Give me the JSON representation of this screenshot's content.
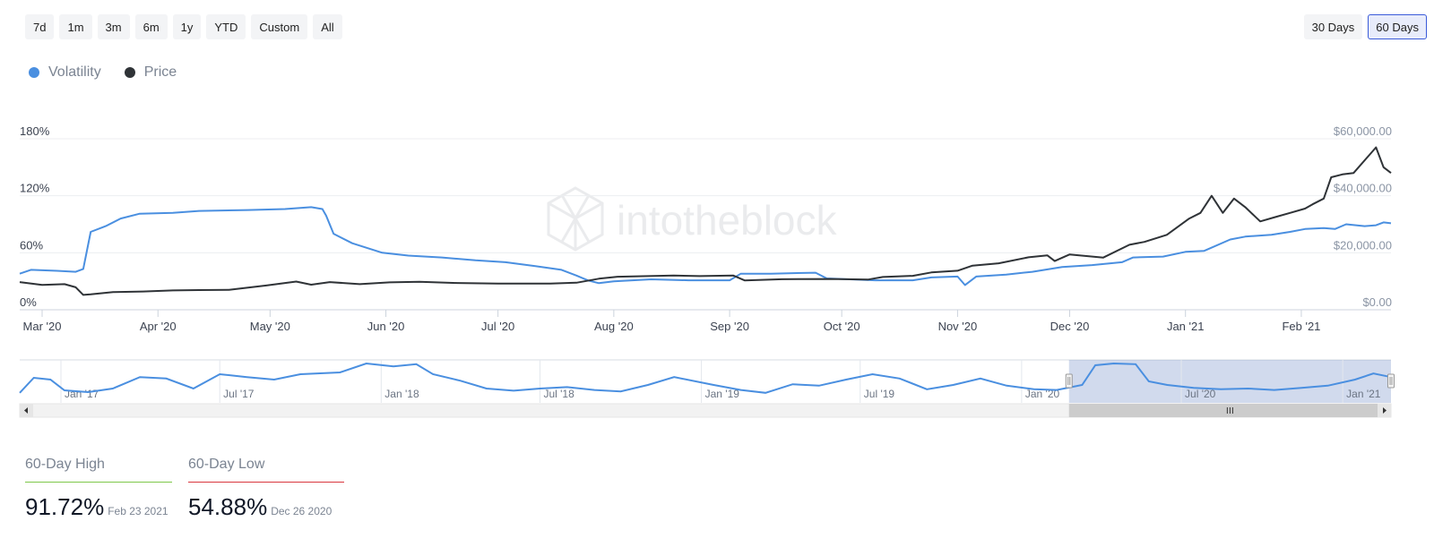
{
  "range_buttons": [
    {
      "label": "7d"
    },
    {
      "label": "1m"
    },
    {
      "label": "3m"
    },
    {
      "label": "6m"
    },
    {
      "label": "1y"
    },
    {
      "label": "YTD"
    },
    {
      "label": "Custom"
    },
    {
      "label": "All"
    }
  ],
  "window_buttons": [
    {
      "label": "30 Days",
      "active": false
    },
    {
      "label": "60 Days",
      "active": true
    }
  ],
  "legend": [
    {
      "label": "Volatility",
      "color": "#4a8fe0"
    },
    {
      "label": "Price",
      "color": "#2f3337"
    }
  ],
  "watermark": "intotheblock",
  "stats": {
    "high": {
      "label": "60-Day High",
      "value": "91.72%",
      "date": "Feb 23 2021",
      "color": "#7ec84a"
    },
    "low": {
      "label": "60-Day Low",
      "value": "54.88%",
      "date": "Dec 26 2020",
      "color": "#d9363e"
    }
  },
  "chart_data": {
    "type": "line",
    "x_range": [
      "2020-02-24",
      "2021-02-25"
    ],
    "x_ticks": [
      {
        "label": "Mar '20",
        "date": "2020-03-01"
      },
      {
        "label": "Apr '20",
        "date": "2020-04-01"
      },
      {
        "label": "May '20",
        "date": "2020-05-01"
      },
      {
        "label": "Jun '20",
        "date": "2020-06-01"
      },
      {
        "label": "Jul '20",
        "date": "2020-07-01"
      },
      {
        "label": "Aug '20",
        "date": "2020-08-01"
      },
      {
        "label": "Sep '20",
        "date": "2020-09-01"
      },
      {
        "label": "Oct '20",
        "date": "2020-10-01"
      },
      {
        "label": "Nov '20",
        "date": "2020-11-01"
      },
      {
        "label": "Dec '20",
        "date": "2020-12-01"
      },
      {
        "label": "Jan '21",
        "date": "2021-01-01"
      },
      {
        "label": "Feb '21",
        "date": "2021-02-01"
      }
    ],
    "y_left": {
      "range": [
        0,
        180
      ],
      "ticks": [
        {
          "value": 0,
          "label": "0%"
        },
        {
          "value": 60,
          "label": "60%"
        },
        {
          "value": 120,
          "label": "120%"
        },
        {
          "value": 180,
          "label": "180%"
        }
      ]
    },
    "y_right": {
      "range": [
        0,
        60000
      ],
      "ticks": [
        {
          "value": 0,
          "label": "$0.00"
        },
        {
          "value": 20000,
          "label": "$20,000.00"
        },
        {
          "value": 40000,
          "label": "$40,000.00"
        },
        {
          "value": 60000,
          "label": "$60,000.00"
        }
      ]
    },
    "grid": true,
    "legend_position": "top-left",
    "series": [
      {
        "name": "Volatility",
        "axis": "left",
        "color": "#4a8fe0",
        "points": [
          [
            "2020-02-24",
            38
          ],
          [
            "2020-02-27",
            42
          ],
          [
            "2020-03-05",
            41
          ],
          [
            "2020-03-10",
            40
          ],
          [
            "2020-03-12",
            43
          ],
          [
            "2020-03-14",
            82
          ],
          [
            "2020-03-18",
            88
          ],
          [
            "2020-03-22",
            96
          ],
          [
            "2020-03-27",
            101
          ],
          [
            "2020-04-05",
            102
          ],
          [
            "2020-04-12",
            104
          ],
          [
            "2020-04-25",
            105
          ],
          [
            "2020-05-05",
            106
          ],
          [
            "2020-05-12",
            108
          ],
          [
            "2020-05-15",
            106
          ],
          [
            "2020-05-16",
            99
          ],
          [
            "2020-05-18",
            80
          ],
          [
            "2020-05-23",
            70
          ],
          [
            "2020-05-31",
            60
          ],
          [
            "2020-06-07",
            57
          ],
          [
            "2020-06-16",
            55
          ],
          [
            "2020-06-25",
            52
          ],
          [
            "2020-07-03",
            50
          ],
          [
            "2020-07-11",
            46
          ],
          [
            "2020-07-18",
            42
          ],
          [
            "2020-07-22",
            36
          ],
          [
            "2020-07-25",
            31
          ],
          [
            "2020-07-28",
            28
          ],
          [
            "2020-08-01",
            30
          ],
          [
            "2020-08-11",
            32
          ],
          [
            "2020-08-21",
            31
          ],
          [
            "2020-09-01",
            31
          ],
          [
            "2020-09-04",
            38
          ],
          [
            "2020-09-12",
            38
          ],
          [
            "2020-09-24",
            39
          ],
          [
            "2020-09-27",
            33
          ],
          [
            "2020-10-10",
            31
          ],
          [
            "2020-10-20",
            31
          ],
          [
            "2020-10-25",
            34
          ],
          [
            "2020-11-01",
            35
          ],
          [
            "2020-11-03",
            26
          ],
          [
            "2020-11-06",
            35
          ],
          [
            "2020-11-14",
            37
          ],
          [
            "2020-11-21",
            40
          ],
          [
            "2020-11-29",
            45
          ],
          [
            "2020-12-07",
            47
          ],
          [
            "2020-12-15",
            50
          ],
          [
            "2020-12-18",
            55
          ],
          [
            "2020-12-26",
            56
          ],
          [
            "2021-01-01",
            61
          ],
          [
            "2021-01-06",
            62
          ],
          [
            "2021-01-13",
            74
          ],
          [
            "2021-01-17",
            77
          ],
          [
            "2021-01-24",
            79
          ],
          [
            "2021-01-29",
            82
          ],
          [
            "2021-02-02",
            85
          ],
          [
            "2021-02-07",
            86
          ],
          [
            "2021-02-10",
            85
          ],
          [
            "2021-02-13",
            90
          ],
          [
            "2021-02-18",
            88
          ],
          [
            "2021-02-21",
            89
          ],
          [
            "2021-02-23",
            92
          ],
          [
            "2021-02-25",
            91
          ]
        ]
      },
      {
        "name": "Price",
        "axis": "right",
        "color": "#2f3337",
        "points": [
          [
            "2020-02-24",
            9700
          ],
          [
            "2020-03-01",
            8700
          ],
          [
            "2020-03-07",
            9000
          ],
          [
            "2020-03-10",
            7900
          ],
          [
            "2020-03-12",
            5200
          ],
          [
            "2020-03-14",
            5400
          ],
          [
            "2020-03-20",
            6200
          ],
          [
            "2020-03-28",
            6400
          ],
          [
            "2020-04-05",
            6800
          ],
          [
            "2020-04-12",
            6900
          ],
          [
            "2020-04-20",
            7000
          ],
          [
            "2020-04-30",
            8500
          ],
          [
            "2020-05-08",
            9900
          ],
          [
            "2020-05-12",
            8800
          ],
          [
            "2020-05-17",
            9700
          ],
          [
            "2020-05-25",
            9000
          ],
          [
            "2020-06-02",
            9600
          ],
          [
            "2020-06-10",
            9800
          ],
          [
            "2020-06-20",
            9400
          ],
          [
            "2020-07-01",
            9200
          ],
          [
            "2020-07-15",
            9200
          ],
          [
            "2020-07-22",
            9500
          ],
          [
            "2020-07-28",
            10900
          ],
          [
            "2020-08-02",
            11600
          ],
          [
            "2020-08-17",
            12000
          ],
          [
            "2020-08-24",
            11800
          ],
          [
            "2020-09-02",
            12000
          ],
          [
            "2020-09-05",
            10300
          ],
          [
            "2020-09-15",
            10700
          ],
          [
            "2020-09-28",
            10800
          ],
          [
            "2020-10-08",
            10600
          ],
          [
            "2020-10-12",
            11500
          ],
          [
            "2020-10-20",
            11900
          ],
          [
            "2020-10-25",
            13100
          ],
          [
            "2020-11-01",
            13700
          ],
          [
            "2020-11-05",
            15500
          ],
          [
            "2020-11-12",
            16300
          ],
          [
            "2020-11-20",
            18400
          ],
          [
            "2020-11-25",
            19100
          ],
          [
            "2020-11-27",
            17100
          ],
          [
            "2020-12-01",
            19400
          ],
          [
            "2020-12-10",
            18300
          ],
          [
            "2020-12-17",
            22800
          ],
          [
            "2020-12-21",
            23800
          ],
          [
            "2020-12-27",
            26300
          ],
          [
            "2021-01-02",
            32000
          ],
          [
            "2021-01-05",
            34000
          ],
          [
            "2021-01-08",
            40000
          ],
          [
            "2021-01-11",
            34000
          ],
          [
            "2021-01-14",
            39000
          ],
          [
            "2021-01-17",
            36000
          ],
          [
            "2021-01-21",
            31000
          ],
          [
            "2021-01-25",
            32500
          ],
          [
            "2021-01-29",
            34000
          ],
          [
            "2021-02-02",
            35500
          ],
          [
            "2021-02-04",
            37000
          ],
          [
            "2021-02-07",
            39000
          ],
          [
            "2021-02-09",
            46500
          ],
          [
            "2021-02-12",
            47500
          ],
          [
            "2021-02-15",
            48000
          ],
          [
            "2021-02-19",
            54000
          ],
          [
            "2021-02-21",
            57000
          ],
          [
            "2021-02-23",
            50000
          ],
          [
            "2021-02-25",
            48000
          ]
        ]
      }
    ],
    "navigator": {
      "ticks": [
        "Jan '17",
        "Jul '17",
        "Jan '18",
        "Jul '18",
        "Jan '19",
        "Jul '19",
        "Jan '20",
        "Jul '20",
        "Jan '21"
      ],
      "range": [
        "2016-11-15",
        "2021-02-25"
      ],
      "selected": [
        "2020-02-24",
        "2021-02-25"
      ],
      "series": [
        [
          "2016-11-15",
          18
        ],
        [
          "2016-12-01",
          60
        ],
        [
          "2016-12-20",
          55
        ],
        [
          "2017-01-05",
          25
        ],
        [
          "2017-02-01",
          20
        ],
        [
          "2017-03-01",
          30
        ],
        [
          "2017-04-01",
          62
        ],
        [
          "2017-05-01",
          58
        ],
        [
          "2017-06-01",
          30
        ],
        [
          "2017-07-01",
          70
        ],
        [
          "2017-08-01",
          62
        ],
        [
          "2017-09-01",
          55
        ],
        [
          "2017-10-01",
          70
        ],
        [
          "2017-11-15",
          75
        ],
        [
          "2017-12-15",
          100
        ],
        [
          "2018-01-15",
          92
        ],
        [
          "2018-02-10",
          98
        ],
        [
          "2018-03-01",
          70
        ],
        [
          "2018-04-01",
          52
        ],
        [
          "2018-05-01",
          30
        ],
        [
          "2018-06-01",
          24
        ],
        [
          "2018-07-01",
          30
        ],
        [
          "2018-08-01",
          34
        ],
        [
          "2018-09-01",
          26
        ],
        [
          "2018-10-01",
          22
        ],
        [
          "2018-11-01",
          40
        ],
        [
          "2018-12-01",
          62
        ],
        [
          "2019-01-15",
          40
        ],
        [
          "2019-02-15",
          26
        ],
        [
          "2019-03-15",
          18
        ],
        [
          "2019-04-15",
          42
        ],
        [
          "2019-05-15",
          38
        ],
        [
          "2019-06-15",
          55
        ],
        [
          "2019-07-15",
          70
        ],
        [
          "2019-08-15",
          58
        ],
        [
          "2019-09-15",
          28
        ],
        [
          "2019-10-15",
          40
        ],
        [
          "2019-11-15",
          58
        ],
        [
          "2019-12-15",
          38
        ],
        [
          "2020-01-15",
          28
        ],
        [
          "2020-02-10",
          26
        ],
        [
          "2020-03-10",
          40
        ],
        [
          "2020-03-25",
          95
        ],
        [
          "2020-04-15",
          100
        ],
        [
          "2020-05-10",
          98
        ],
        [
          "2020-05-25",
          50
        ],
        [
          "2020-06-15",
          40
        ],
        [
          "2020-07-15",
          32
        ],
        [
          "2020-08-15",
          28
        ],
        [
          "2020-09-15",
          30
        ],
        [
          "2020-10-15",
          26
        ],
        [
          "2020-11-15",
          32
        ],
        [
          "2020-12-15",
          38
        ],
        [
          "2021-01-15",
          55
        ],
        [
          "2021-02-05",
          72
        ],
        [
          "2021-02-25",
          62
        ]
      ]
    }
  }
}
